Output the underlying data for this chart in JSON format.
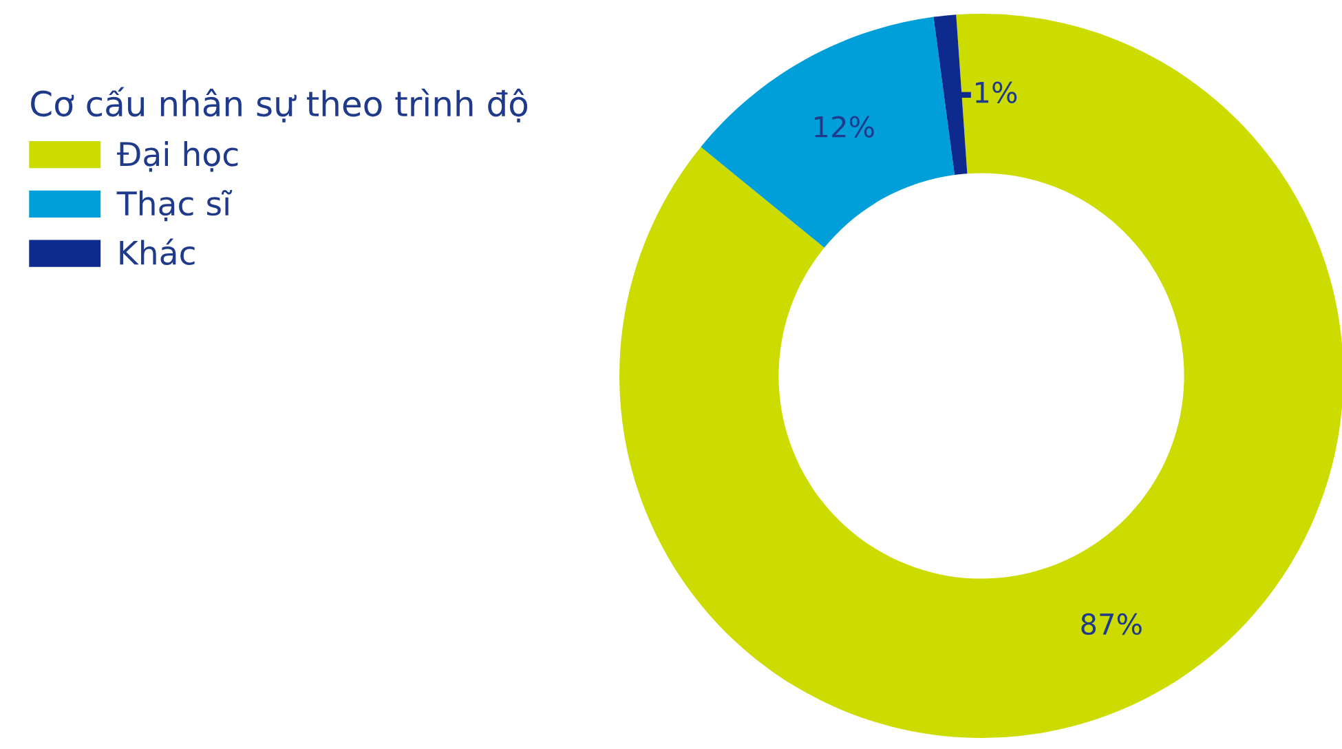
{
  "chart_data": {
    "type": "donut",
    "legend_title": "Cơ cấu nhân sự theo trình độ",
    "categories": [
      "Đại học",
      "Thạc sĩ",
      "Khác"
    ],
    "values": [
      87,
      12,
      1
    ],
    "colors": [
      "#cddc00",
      "#009fda",
      "#0f2a8f"
    ],
    "value_labels": [
      "87%",
      "12%",
      "1%"
    ],
    "legend": "left"
  }
}
